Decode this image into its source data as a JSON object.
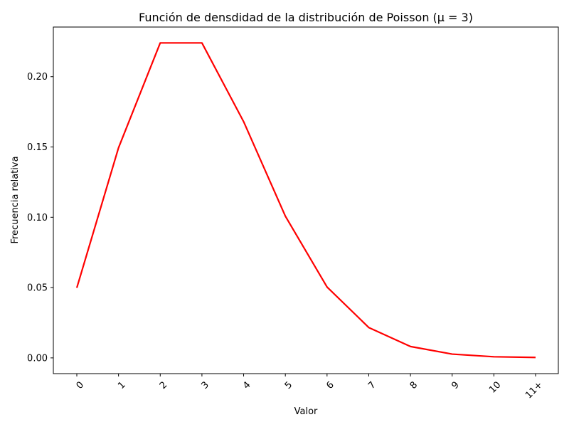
{
  "chart_data": {
    "type": "line",
    "title": "Función de densdidad de la distribución de Poisson (μ = 3)",
    "xlabel": "Valor",
    "ylabel": "Frecuencia relativa",
    "categories": [
      "0",
      "1",
      "2",
      "3",
      "4",
      "5",
      "6",
      "7",
      "8",
      "9",
      "10",
      "11+"
    ],
    "series": [
      {
        "color": "#ff0000",
        "values": [
          0.0498,
          0.1494,
          0.224,
          0.224,
          0.168,
          0.1008,
          0.0504,
          0.0216,
          0.0081,
          0.0027,
          0.0008,
          0.0003
        ]
      }
    ],
    "ylim": [
      -0.0112,
      0.2353
    ],
    "yticks": [
      0.0,
      0.05,
      0.1,
      0.15,
      0.2
    ],
    "ytick_labels": [
      "0.00",
      "0.05",
      "0.10",
      "0.15",
      "0.20"
    ],
    "grid": false,
    "legend": "none"
  }
}
